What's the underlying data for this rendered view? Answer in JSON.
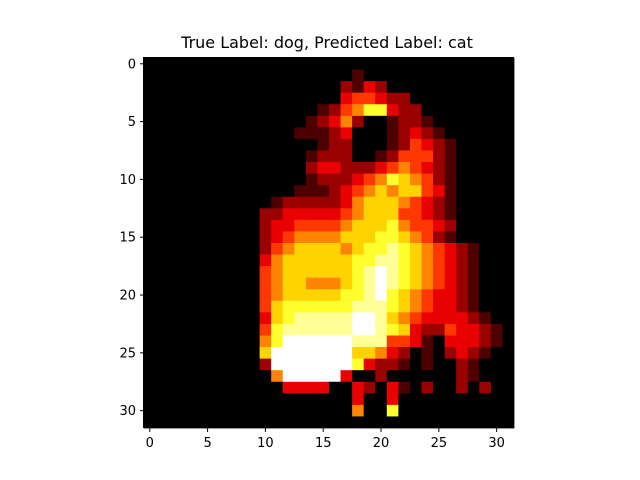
{
  "chart_data": {
    "type": "heatmap",
    "title": "True Label: dog, Predicted Label: cat",
    "colormap": "hot",
    "rows": 32,
    "cols": 32,
    "x_ticks": [
      0,
      5,
      10,
      15,
      20,
      25,
      30
    ],
    "y_ticks": [
      0,
      5,
      10,
      15,
      20,
      25,
      30
    ],
    "grid": false,
    "values": [
      "00000000000000000000000000000000",
      "00000000000000000010000000000000",
      "00000000000000000213200000000000",
      "00000000000000000344322000000000",
      "00000000000000012457732200000000",
      "00000000000000123520012210000000",
      "00000000000001112300012321000000",
      "00000000000000012200012432100000",
      "00000000000000122200124442100000",
      "00000000000000233222345432100000",
      "00000000000000122234576542100000",
      "00000000000001112345656643100000",
      "00000000000122222356665432100000",
      "00000000002233333456664432100000",
      "00000000002334444566675443200000",
      "00000000002345555666776542100000",
      "00000000002456666567787654321000",
      "00000000003566666677887654321000",
      "00000000004566666678987654321000",
      "00000000004566555678987654321000",
      "00000000004566666778976543321000",
      "00000000004677777788876543321000",
      "00000000003678888899865433332100",
      "00000000004788888899876322433210",
      "00000000005799999988844310333210",
      "00000000006999999966532010232100",
      "00000000002999999973221010021000",
      "00000000000599999300200000021000",
      "00000000000033330032031020020200",
      "00000000000000000030030000000000",
      "00000000000000000050070000000000",
      "00000000000000000000000000000000"
    ]
  }
}
